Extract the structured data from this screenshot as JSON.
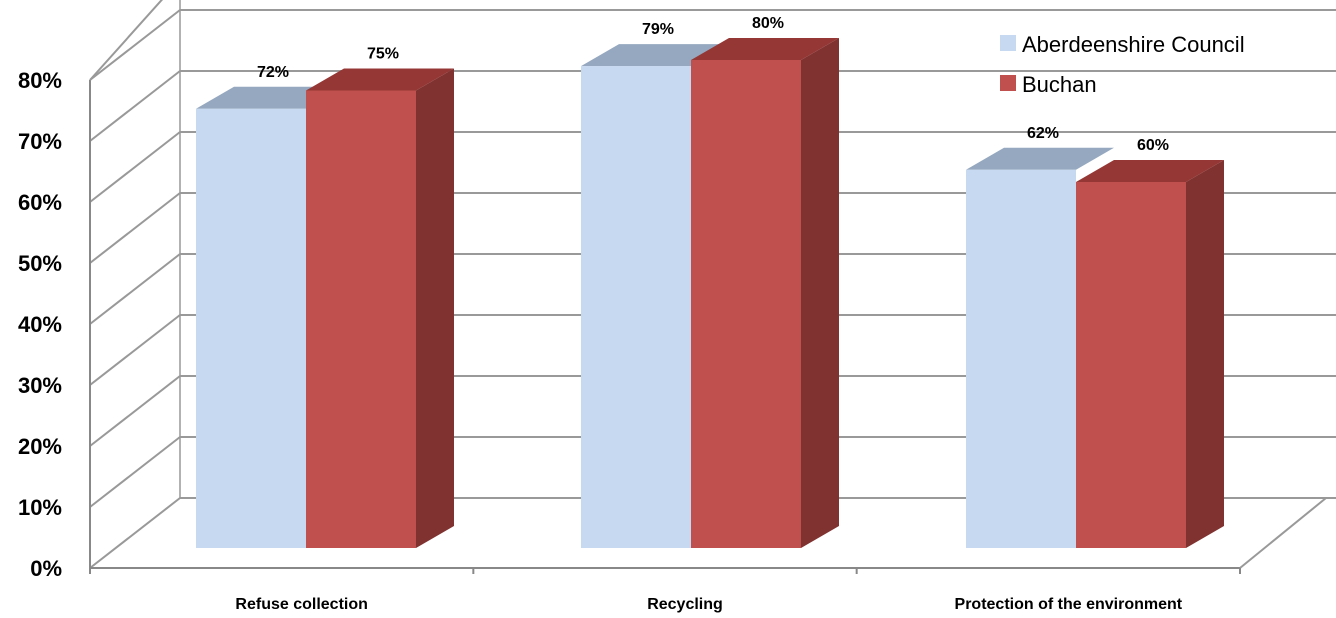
{
  "chart_data": {
    "type": "bar",
    "categories": [
      "Refuse collection",
      "Recycling",
      "Protection of the environment"
    ],
    "series": [
      {
        "name": "Aberdeenshire Council",
        "values": [
          72,
          79,
          62
        ],
        "color": "#c6d9f1",
        "top_color": "#95a8bf"
      },
      {
        "name": "Buchan",
        "values": [
          75,
          80,
          60
        ],
        "color": "#c0504d",
        "top_color": "#953735",
        "side_color": "#7f3230"
      }
    ],
    "data_labels": [
      [
        "72%",
        "79%",
        "62%"
      ],
      [
        "75%",
        "80%",
        "60%"
      ]
    ],
    "y_ticks": [
      "0%",
      "10%",
      "20%",
      "30%",
      "40%",
      "50%",
      "60%",
      "70%",
      "80%"
    ],
    "ylim": [
      0,
      80
    ],
    "grid": true,
    "legend_position": "top-right",
    "style": "3d-clustered-column",
    "colors": {
      "gridline": "#999999",
      "axis": "#888888"
    }
  }
}
